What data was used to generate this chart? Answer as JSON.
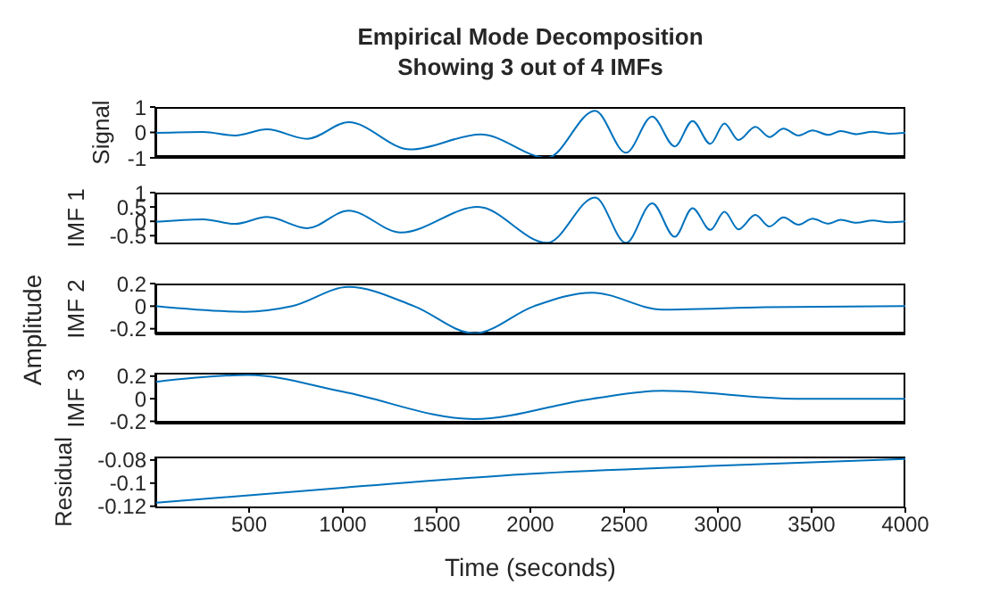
{
  "chart_data": [
    {
      "type": "line",
      "title": "Empirical Mode Decomposition",
      "subtitle": "Showing 3 out of 4 IMFs",
      "ylabel": "Signal",
      "xlim": [
        0,
        4000
      ],
      "xticks": [
        500,
        1000,
        1500,
        2000,
        2500,
        3000,
        3500,
        4000
      ],
      "ylim": [
        -1,
        1
      ],
      "yticks": [
        -1,
        0,
        1
      ],
      "tick_labels": "y",
      "x": [
        0,
        255,
        425,
        595,
        810,
        1030,
        1360,
        1735,
        2090,
        2345,
        2510,
        2650,
        2770,
        2865,
        2960,
        3035,
        3110,
        3200,
        3275,
        3350,
        3430,
        3505,
        3590,
        3655,
        3740,
        3825,
        3910,
        4000
      ],
      "series": [
        {
          "color": "#0072bd",
          "values": [
            -0.02,
            0.02,
            -0.12,
            0.12,
            -0.25,
            0.4,
            -0.67,
            -0.08,
            -1.0,
            0.85,
            -0.8,
            0.62,
            -0.55,
            0.45,
            -0.45,
            0.35,
            -0.3,
            0.22,
            -0.18,
            0.15,
            -0.12,
            0.08,
            -0.1,
            0.05,
            -0.07,
            0.03,
            -0.05,
            -0.02
          ]
        }
      ]
    },
    {
      "type": "line",
      "ylabel": "IMF 1",
      "xlim": [
        0,
        4000
      ],
      "xticks": [
        500,
        1000,
        1500,
        2000,
        2500,
        3000,
        3500,
        4000
      ],
      "ylim": [
        -0.77,
        1
      ],
      "yticks": [
        -0.5,
        0,
        0.5,
        1
      ],
      "tick_labels": "y",
      "x": [
        0,
        255,
        425,
        595,
        810,
        1030,
        1310,
        1720,
        2090,
        2345,
        2510,
        2650,
        2770,
        2865,
        2960,
        3035,
        3110,
        3200,
        3275,
        3350,
        3430,
        3505,
        3590,
        3655,
        3740,
        3825,
        3910,
        4000
      ],
      "series": [
        {
          "color": "#0072bd",
          "values": [
            -0.02,
            0.07,
            -0.09,
            0.15,
            -0.24,
            0.37,
            -0.39,
            0.5,
            -0.75,
            0.83,
            -0.75,
            0.63,
            -0.54,
            0.46,
            -0.3,
            0.33,
            -0.28,
            0.22,
            -0.18,
            0.14,
            -0.12,
            0.09,
            -0.08,
            0.05,
            -0.05,
            0.03,
            -0.03,
            0
          ]
        }
      ]
    },
    {
      "type": "line",
      "ylabel": "IMF 2",
      "annotations": [
        "Amplitude"
      ],
      "xlim": [
        0,
        4000
      ],
      "xticks": [
        500,
        1000,
        1500,
        2000,
        2500,
        3000,
        3500,
        4000
      ],
      "ylim": [
        -0.25,
        0.2
      ],
      "yticks": [
        -0.2,
        0,
        0.2
      ],
      "tick_labels": "y",
      "x": [
        0,
        475,
        730,
        1030,
        1380,
        1700,
        2020,
        2330,
        2705,
        3250,
        4000
      ],
      "series": [
        {
          "color": "#0072bd",
          "values": [
            0,
            -0.05,
            0,
            0.17,
            0,
            -0.24,
            0,
            0.12,
            -0.03,
            -0.01,
            0
          ]
        }
      ]
    },
    {
      "type": "line",
      "ylabel": "IMF 3",
      "xlim": [
        0,
        4000
      ],
      "xticks": [
        500,
        1000,
        1500,
        2000,
        2500,
        3000,
        3500,
        4000
      ],
      "ylim": [
        -0.22,
        0.23
      ],
      "yticks": [
        -0.2,
        0,
        0.2
      ],
      "tick_labels": "y",
      "x": [
        0,
        495,
        1005,
        1700,
        2330,
        2705,
        3420,
        4000
      ],
      "series": [
        {
          "color": "#0072bd",
          "values": [
            0.15,
            0.21,
            0.06,
            -0.18,
            0,
            0.07,
            0,
            0
          ]
        }
      ]
    },
    {
      "type": "line",
      "ylabel": "Residual",
      "xlabel": "Time (seconds)",
      "xlim": [
        0,
        4000
      ],
      "xticks": [
        500,
        1000,
        1500,
        2000,
        2500,
        3000,
        3500,
        4000
      ],
      "ylim": [
        -0.121,
        -0.077
      ],
      "yticks": [
        -0.12,
        -0.1,
        -0.08
      ],
      "x": [
        0,
        1000,
        1990,
        3000,
        4000
      ],
      "series": [
        {
          "color": "#0072bd",
          "values": [
            -0.117,
            -0.104,
            -0.092,
            -0.085,
            -0.079
          ]
        }
      ]
    }
  ]
}
